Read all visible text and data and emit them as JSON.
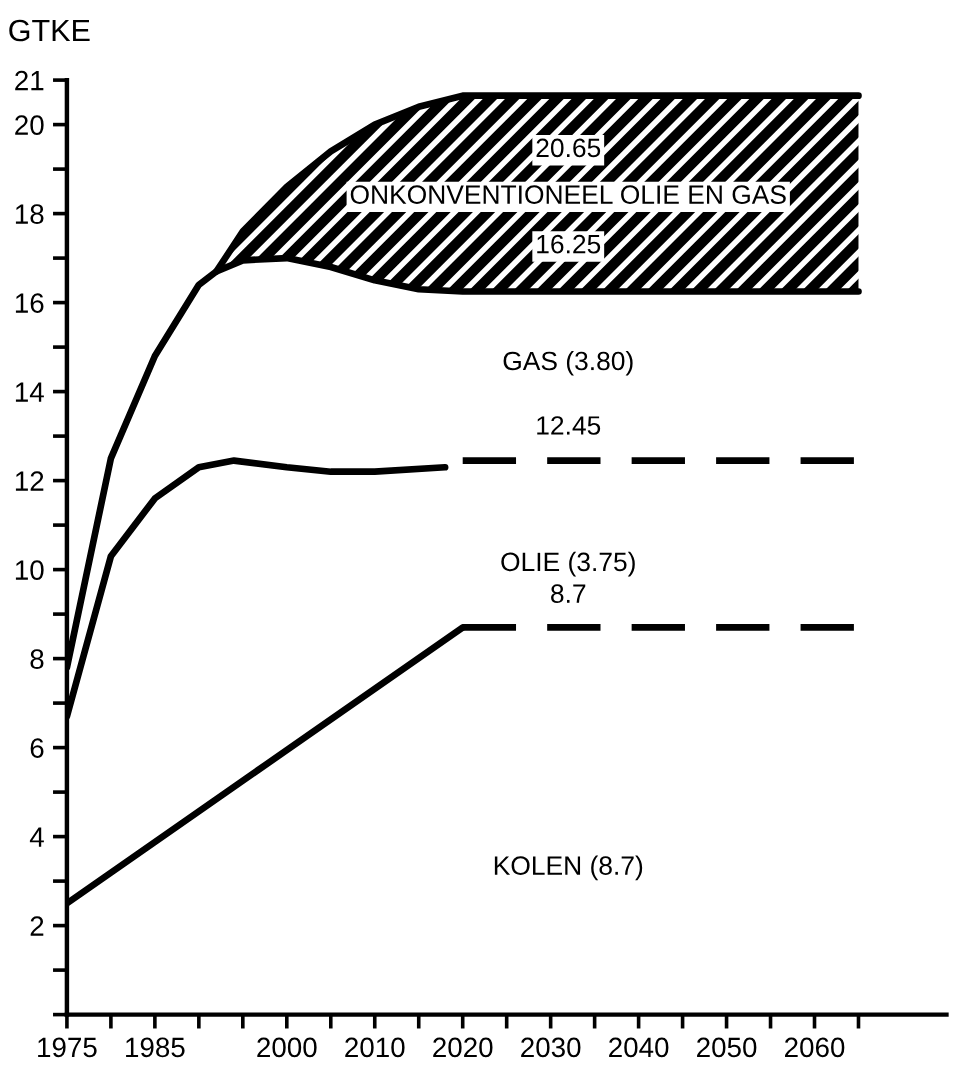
{
  "chart_data": {
    "type": "line",
    "ylabel": "GTKE",
    "xlim": [
      1975,
      2075
    ],
    "ylim": [
      0,
      21
    ],
    "xticks": [
      1975,
      {
        "value": 1980,
        "label": null
      },
      1985,
      {
        "value": 1990,
        "label": null
      },
      {
        "value": 1995,
        "label": null
      },
      2000,
      {
        "value": 2005,
        "label": null
      },
      2010,
      {
        "value": 2015,
        "label": null
      },
      2020,
      {
        "value": 2025,
        "label": null
      },
      2030,
      {
        "value": 2035,
        "label": null
      },
      2040,
      {
        "value": 2045,
        "label": null
      },
      2050,
      {
        "value": 2055,
        "label": null
      },
      2060,
      {
        "value": 2065,
        "label": null
      }
    ],
    "yticks": [
      {
        "value": 0,
        "label": null
      },
      {
        "value": 1,
        "label": null
      },
      2,
      {
        "value": 3,
        "label": null
      },
      4,
      {
        "value": 5,
        "label": null
      },
      6,
      {
        "value": 7,
        "label": null
      },
      8,
      {
        "value": 9,
        "label": null
      },
      10,
      {
        "value": 11,
        "label": null
      },
      12,
      {
        "value": 13,
        "label": null
      },
      14,
      {
        "value": 15,
        "label": null
      },
      16,
      {
        "value": 17,
        "label": null
      },
      18,
      {
        "value": 19,
        "label": null
      },
      20,
      21
    ],
    "grid": false,
    "legend": false,
    "series": [
      {
        "color": "#000000",
        "line_style": "solid",
        "x": [
          1992,
          1995,
          2000,
          2005,
          2010,
          2015,
          2020,
          2065
        ],
        "values": [
          16.7,
          17.6,
          18.6,
          19.4,
          20.0,
          20.4,
          20.65,
          20.65
        ],
        "lower": [
          16.7,
          16.95,
          17.0,
          16.8,
          16.5,
          16.3,
          16.25,
          16.25
        ],
        "upper": [
          16.7,
          17.6,
          18.6,
          19.4,
          20.0,
          20.4,
          20.65,
          20.65
        ]
      },
      {
        "color": "#000000",
        "line_style": "solid",
        "x": [
          1975,
          1980,
          1985,
          1990,
          1992,
          1995,
          2000,
          2005,
          2010,
          2015,
          2020,
          2065
        ],
        "values": [
          7.8,
          12.5,
          14.8,
          16.4,
          16.7,
          16.95,
          17.0,
          16.8,
          16.5,
          16.3,
          16.25,
          16.25
        ]
      },
      {
        "color": "#000000",
        "line_style": "solid",
        "x": [
          1975,
          1980,
          1985,
          1990,
          1994,
          2000,
          2005,
          2010,
          2018
        ],
        "values": [
          6.7,
          10.3,
          11.6,
          12.3,
          12.45,
          12.3,
          12.2,
          12.2,
          12.3
        ]
      },
      {
        "color": "#000000",
        "line_style": "dashed",
        "x": [
          2020,
          2065
        ],
        "values": [
          12.45,
          12.45
        ]
      },
      {
        "color": "#000000",
        "line_style": "solid",
        "x": [
          1975,
          2020
        ],
        "values": [
          2.5,
          8.7
        ]
      },
      {
        "color": "#000000",
        "line_style": "dashed",
        "x": [
          2020,
          2065
        ],
        "values": [
          8.7,
          8.7
        ]
      }
    ],
    "annotations": [
      "20.65",
      "ONKONVENTIONEEL OLIE EN GAS",
      "16.25",
      "GAS (3.80)",
      "12.45",
      "OLIE (3.75)",
      "8.7",
      "KOLEN (8.7)"
    ]
  }
}
